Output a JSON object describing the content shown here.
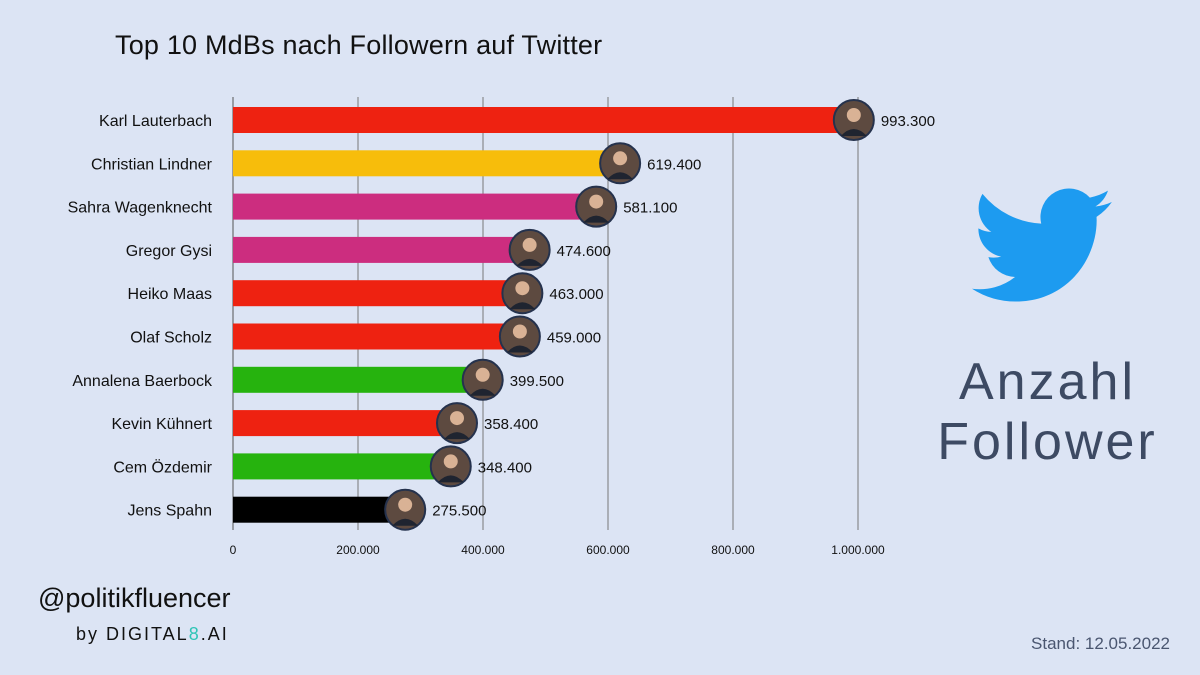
{
  "chart_data": {
    "type": "bar",
    "orientation": "horizontal",
    "title": "Top 10 MdBs nach Followern auf Twitter",
    "categories": [
      "Karl Lauterbach",
      "Christian Lindner",
      "Sahra Wagenknecht",
      "Gregor Gysi",
      "Heiko Maas",
      "Olaf Scholz",
      "Annalena Baerbock",
      "Kevin Kühnert",
      "Cem Özdemir",
      "Jens Spahn"
    ],
    "values": [
      993300,
      619400,
      581100,
      474600,
      463000,
      459000,
      399500,
      358400,
      348400,
      275500
    ],
    "value_labels": [
      "993.300",
      "619.400",
      "581.100",
      "474.600",
      "463.000",
      "459.000",
      "399.500",
      "358.400",
      "348.400",
      "275.500"
    ],
    "bar_colors": [
      "#ee2211",
      "#f7bd0b",
      "#cc2d7f",
      "#cc2d7f",
      "#ee2211",
      "#ee2211",
      "#26b30e",
      "#ee2211",
      "#26b30e",
      "#000000"
    ],
    "xlim": [
      0,
      1000000
    ],
    "ticks": [
      0,
      200000,
      400000,
      600000,
      800000,
      1000000
    ],
    "tick_labels": [
      "0",
      "200.000",
      "400.000",
      "600.000",
      "800.000",
      "1.000.000"
    ],
    "grid": true,
    "xlabel": "",
    "ylabel": ""
  },
  "side": {
    "line1": "Anzahl",
    "line2": "Follower",
    "icon": "twitter-bird-icon",
    "icon_color": "#1d9bf0"
  },
  "footer": {
    "handle": "@politikfluencer",
    "by_prefix": "by DIGITAL",
    "by_accent": "8",
    "by_suffix": ".AI",
    "accent_color": "#2ec4b6",
    "stand": "Stand: 12.05.2022"
  }
}
